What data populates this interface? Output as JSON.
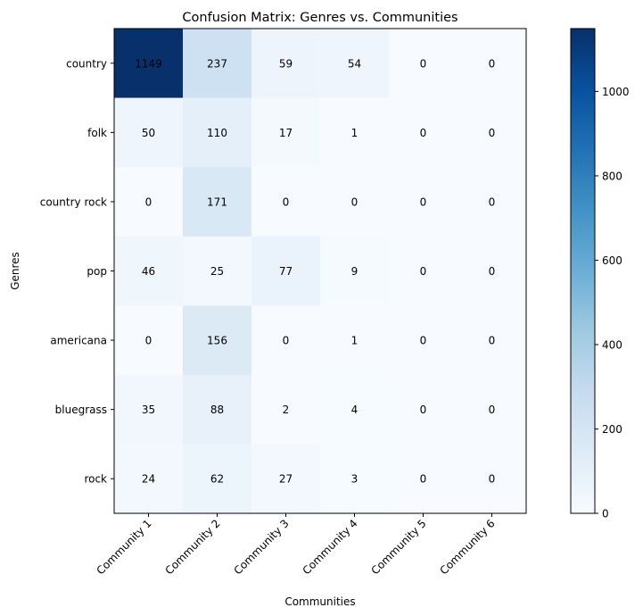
{
  "chart_data": {
    "type": "heatmap",
    "title": "Confusion Matrix: Genres vs. Communities",
    "xlabel": "Communities",
    "ylabel": "Genres",
    "rows": [
      "country",
      "folk",
      "country rock",
      "pop",
      "americana",
      "bluegrass",
      "rock"
    ],
    "columns": [
      "Community 1",
      "Community 2",
      "Community 3",
      "Community 4",
      "Community 5",
      "Community 6"
    ],
    "values": [
      [
        1149,
        237,
        59,
        54,
        0,
        0
      ],
      [
        50,
        110,
        17,
        1,
        0,
        0
      ],
      [
        0,
        171,
        0,
        0,
        0,
        0
      ],
      [
        46,
        25,
        77,
        9,
        0,
        0
      ],
      [
        0,
        156,
        0,
        1,
        0,
        0
      ],
      [
        35,
        88,
        2,
        4,
        0,
        0
      ],
      [
        24,
        62,
        27,
        3,
        0,
        0
      ]
    ],
    "colormap": "Blues",
    "color_range": [
      0,
      1149
    ],
    "colorbar_ticks": [
      0,
      200,
      400,
      600,
      800,
      1000
    ],
    "x_tick_rotation_deg": 45
  }
}
